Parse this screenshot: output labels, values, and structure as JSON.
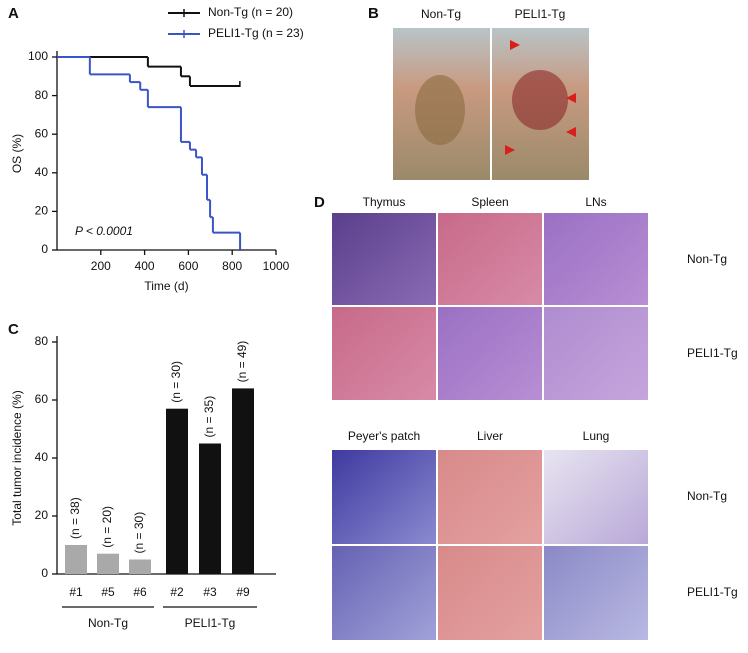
{
  "chart_data": [
    {
      "type": "line",
      "panel": "A",
      "step": true,
      "x_label": "Time (d)",
      "y_label": "OS (%)",
      "annotation": "P < 0.0001",
      "xlim": [
        0,
        1000
      ],
      "ylim": [
        0,
        100
      ],
      "xticks": [
        200,
        400,
        600,
        800,
        1000
      ],
      "yticks": [
        0,
        20,
        40,
        60,
        80,
        100
      ],
      "legend": "top",
      "series": [
        {
          "name": "Non-Tg (n = 20)",
          "color": "#111111",
          "x": [
            0,
            415,
            566,
            607,
            835
          ],
          "values": [
            100,
            95,
            90,
            85,
            85
          ]
        },
        {
          "name": "PELI1-Tg (n = 23)",
          "color": "#3a55c8",
          "x": [
            0,
            150,
            333,
            380,
            415,
            566,
            607,
            635,
            662,
            685,
            699,
            712,
            836
          ],
          "values": [
            100,
            91,
            87,
            83,
            74,
            56,
            52,
            48,
            39,
            26,
            17,
            9,
            0
          ]
        }
      ]
    },
    {
      "type": "bar",
      "panel": "C",
      "y_label": "Total tumor incidence (%)",
      "ylim": [
        0,
        80
      ],
      "yticks": [
        0,
        20,
        40,
        60,
        80
      ],
      "categories": [
        "#1",
        "#5",
        "#6",
        "#2",
        "#3",
        "#9"
      ],
      "values": [
        10,
        7,
        5,
        57,
        45,
        64
      ],
      "colors": [
        "#a9a9a9",
        "#a9a9a9",
        "#a9a9a9",
        "#111111",
        "#111111",
        "#111111"
      ],
      "annotations": [
        "(n = 38)",
        "(n = 20)",
        "(n = 30)",
        "(n = 30)",
        "(n = 35)",
        "(n = 49)"
      ],
      "groups": [
        {
          "label": "Non-Tg",
          "members": [
            "#1",
            "#5",
            "#6"
          ]
        },
        {
          "label": "PELI1-Tg",
          "members": [
            "#2",
            "#3",
            "#9"
          ]
        }
      ]
    }
  ],
  "panel_b": {
    "panel": "B",
    "columns": [
      "Non-Tg",
      "PELI1-Tg"
    ]
  },
  "panel_d": {
    "panel": "D",
    "sections": [
      {
        "columns": [
          "Thymus",
          "Spleen",
          "LNs"
        ],
        "rows": [
          "Non-Tg",
          "PELI1-Tg"
        ]
      },
      {
        "columns": [
          "Peyer's patch",
          "Liver",
          "Lung"
        ],
        "rows": [
          "Non-Tg",
          "PELI1-Tg"
        ]
      }
    ]
  }
}
